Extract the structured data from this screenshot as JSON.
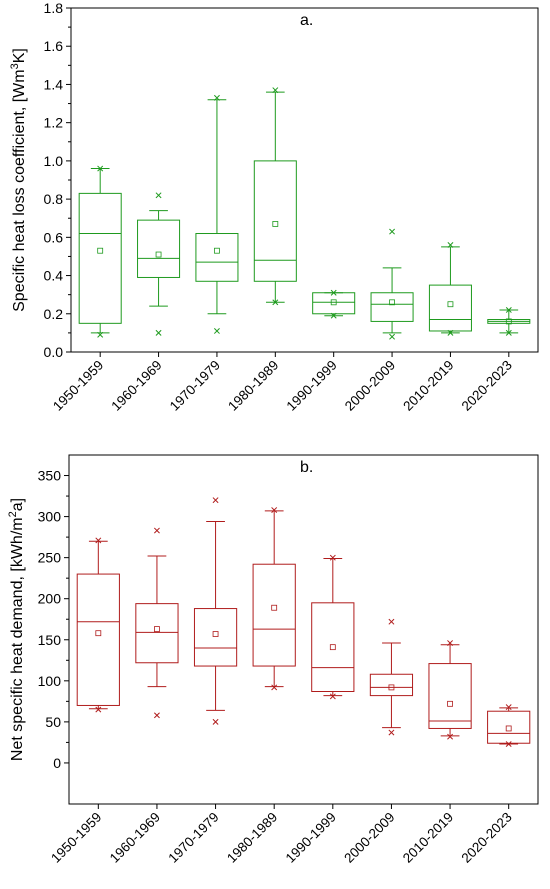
{
  "chart_data": [
    {
      "type": "box",
      "panel_label": "a.",
      "ylabel": "Specific heat loss coefficient, [Wm³K]",
      "ylabel_unit_base": "Specific heat loss coefficient, [Wm",
      "ylabel_unit_sup": "3",
      "ylabel_unit_tail": "K]",
      "color": "#1e9a1e",
      "ylim": [
        0,
        1.8
      ],
      "yticks": [
        0.0,
        0.2,
        0.4,
        0.6,
        0.8,
        1.0,
        1.2,
        1.4,
        1.6,
        1.8
      ],
      "ytick_labels": [
        "0.0",
        "0.2",
        "0.4",
        "0.6",
        "0.8",
        "1.0",
        "1.2",
        "1.4",
        "1.6",
        "1.8"
      ],
      "categories": [
        "1950-1959",
        "1960-1969",
        "1970-1979",
        "1980-1989",
        "1990-1999",
        "2000-2009",
        "2010-2019",
        "2020-2023"
      ],
      "boxes": [
        {
          "whisker_low": 0.1,
          "q1": 0.15,
          "median": 0.62,
          "q3": 0.83,
          "whisker_high": 0.96,
          "mean": 0.53,
          "outliers_low": [
            0.09
          ],
          "outliers_high": [
            0.96
          ]
        },
        {
          "whisker_low": 0.24,
          "q1": 0.39,
          "median": 0.49,
          "q3": 0.69,
          "whisker_high": 0.74,
          "mean": 0.51,
          "outliers_low": [
            0.1
          ],
          "outliers_high": [
            0.82
          ]
        },
        {
          "whisker_low": 0.2,
          "q1": 0.37,
          "median": 0.47,
          "q3": 0.62,
          "whisker_high": 1.32,
          "mean": 0.53,
          "outliers_low": [
            0.11
          ],
          "outliers_high": [
            1.33
          ]
        },
        {
          "whisker_low": 0.26,
          "q1": 0.37,
          "median": 0.48,
          "q3": 1.0,
          "whisker_high": 1.36,
          "mean": 0.67,
          "outliers_low": [
            0.26
          ],
          "outliers_high": [
            1.37
          ]
        },
        {
          "whisker_low": 0.19,
          "q1": 0.2,
          "median": 0.26,
          "q3": 0.31,
          "whisker_high": 0.31,
          "mean": 0.26,
          "outliers_low": [
            0.19
          ],
          "outliers_high": [
            0.31
          ]
        },
        {
          "whisker_low": 0.1,
          "q1": 0.16,
          "median": 0.25,
          "q3": 0.31,
          "whisker_high": 0.44,
          "mean": 0.26,
          "outliers_low": [
            0.08
          ],
          "outliers_high": [
            0.63
          ]
        },
        {
          "whisker_low": 0.1,
          "q1": 0.11,
          "median": 0.17,
          "q3": 0.35,
          "whisker_high": 0.55,
          "mean": 0.25,
          "outliers_low": [
            0.1
          ],
          "outliers_high": [
            0.56
          ]
        },
        {
          "whisker_low": 0.1,
          "q1": 0.15,
          "median": 0.16,
          "q3": 0.17,
          "whisker_high": 0.22,
          "mean": 0.16,
          "outliers_low": [
            0.1
          ],
          "outliers_high": [
            0.22
          ]
        }
      ]
    },
    {
      "type": "box",
      "panel_label": "b.",
      "ylabel": "Net specific heat demand, [kWh/m²a]",
      "ylabel_unit_base": "Net specific heat demand, [kWh/m",
      "ylabel_unit_sup": "2",
      "ylabel_unit_tail": "a]",
      "color": "#b01c1c",
      "ylim": [
        -50,
        375
      ],
      "yticks": [
        0,
        50,
        100,
        150,
        200,
        250,
        300,
        350
      ],
      "ytick_labels": [
        "0",
        "50",
        "100",
        "150",
        "200",
        "250",
        "300",
        "350"
      ],
      "categories": [
        "1950-1959",
        "1960-1969",
        "1970-1979",
        "1980-1989",
        "1990-1999",
        "2000-2009",
        "2010-2019",
        "2020-2023"
      ],
      "boxes": [
        {
          "whisker_low": 66,
          "q1": 70,
          "median": 172,
          "q3": 230,
          "whisker_high": 270,
          "mean": 158,
          "outliers_low": [
            65
          ],
          "outliers_high": [
            271
          ]
        },
        {
          "whisker_low": 93,
          "q1": 122,
          "median": 159,
          "q3": 194,
          "whisker_high": 252,
          "mean": 163,
          "outliers_low": [
            58
          ],
          "outliers_high": [
            283
          ]
        },
        {
          "whisker_low": 64,
          "q1": 118,
          "median": 140,
          "q3": 188,
          "whisker_high": 294,
          "mean": 157,
          "outliers_low": [
            50
          ],
          "outliers_high": [
            320
          ]
        },
        {
          "whisker_low": 93,
          "q1": 118,
          "median": 163,
          "q3": 242,
          "whisker_high": 307,
          "mean": 189,
          "outliers_low": [
            92
          ],
          "outliers_high": [
            308
          ]
        },
        {
          "whisker_low": 82,
          "q1": 87,
          "median": 116,
          "q3": 195,
          "whisker_high": 249,
          "mean": 141,
          "outliers_low": [
            81
          ],
          "outliers_high": [
            250
          ]
        },
        {
          "whisker_low": 43,
          "q1": 82,
          "median": 92,
          "q3": 108,
          "whisker_high": 146,
          "mean": 92,
          "outliers_low": [
            37
          ],
          "outliers_high": [
            172
          ]
        },
        {
          "whisker_low": 33,
          "q1": 42,
          "median": 51,
          "q3": 121,
          "whisker_high": 144,
          "mean": 72,
          "outliers_low": [
            32
          ],
          "outliers_high": [
            146
          ]
        },
        {
          "whisker_low": 23,
          "q1": 24,
          "median": 36,
          "q3": 63,
          "whisker_high": 67,
          "mean": 42,
          "outliers_low": [
            23
          ],
          "outliers_high": [
            68
          ]
        }
      ]
    }
  ]
}
